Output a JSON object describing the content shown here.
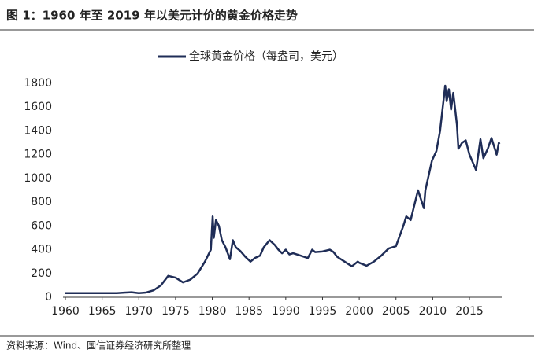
{
  "chart_data": {
    "type": "line",
    "title": "图 1：1960 年至 2019 年以美元计价的黄金价格走势",
    "source": "资料来源：Wind、国信证券经济研究所整理",
    "x": [
      1960,
      1967,
      1968,
      1969,
      1970,
      1971,
      1972,
      1973,
      1974,
      1975,
      1976,
      1977,
      1978,
      1979,
      1979.8,
      1980.05,
      1980.2,
      1980.5,
      1980.9,
      1981.3,
      1981.8,
      1982.4,
      1982.8,
      1983.2,
      1983.8,
      1984.5,
      1985.2,
      1985.8,
      1986.5,
      1987,
      1987.8,
      1988.5,
      1989,
      1989.5,
      1990,
      1990.5,
      1991,
      1992,
      1993,
      1993.6,
      1994,
      1995,
      1996,
      1996.5,
      1997,
      1998,
      1999,
      1999.8,
      2000,
      2001,
      2002,
      2003,
      2004,
      2005,
      2006,
      2006.4,
      2007,
      2008,
      2008.8,
      2009,
      2009.9,
      2010.5,
      2011,
      2011.7,
      2011.9,
      2012.2,
      2012.5,
      2012.8,
      2013.3,
      2013.5,
      2014,
      2014.5,
      2015,
      2015.9,
      2016.5,
      2016.9,
      2017.5,
      2018,
      2018.7,
      2019,
      2019.1
    ],
    "series": [
      {
        "name": "全球黄金价格（每盎司，美元）",
        "color": "#1f2d57",
        "values": [
          35,
          35,
          39,
          42,
          35,
          40,
          58,
          100,
          180,
          165,
          125,
          148,
          200,
          300,
          400,
          680,
          500,
          650,
          600,
          480,
          420,
          320,
          480,
          420,
          390,
          340,
          300,
          330,
          350,
          420,
          480,
          440,
          400,
          370,
          400,
          360,
          370,
          350,
          330,
          400,
          380,
          385,
          400,
          380,
          340,
          300,
          260,
          300,
          290,
          265,
          300,
          350,
          410,
          430,
          600,
          680,
          650,
          900,
          750,
          900,
          1150,
          1230,
          1400,
          1780,
          1650,
          1750,
          1580,
          1720,
          1450,
          1250,
          1300,
          1320,
          1200,
          1070,
          1330,
          1170,
          1250,
          1340,
          1200,
          1300,
          1290
        ]
      }
    ],
    "xlim": [
      1960,
      2019.5
    ],
    "xticks": [
      1960,
      1965,
      1970,
      1975,
      1980,
      1985,
      1990,
      1995,
      2000,
      2005,
      2010,
      2015
    ],
    "ylim": [
      0,
      1800
    ],
    "yticks": [
      0,
      200,
      400,
      600,
      800,
      1000,
      1200,
      1400,
      1600,
      1800
    ],
    "grid": false
  }
}
